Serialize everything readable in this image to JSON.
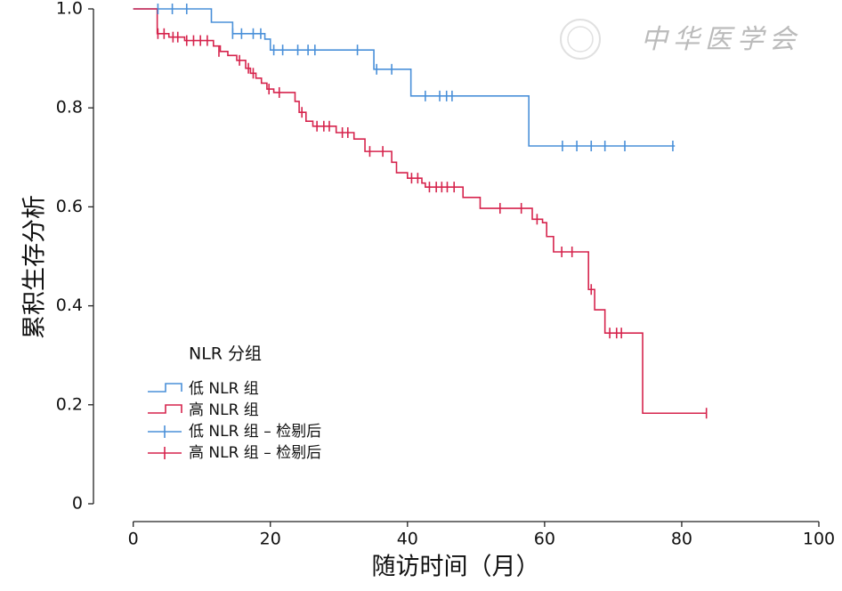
{
  "chart_data": {
    "type": "kaplan-meier",
    "xlabel": "随访时间（月）",
    "ylabel": "累积生存分析",
    "legend_title": "NLR 分组",
    "watermark": "中华医学会",
    "xlim": [
      -5.8,
      100
    ],
    "ylim": [
      -0.036,
      1.0
    ],
    "xticks": [
      0,
      20,
      40,
      60,
      80,
      100
    ],
    "yticks": [
      0,
      0.2,
      0.4,
      0.6,
      0.8,
      {
        "value": 1,
        "label": "1.0"
      }
    ],
    "legend": "left",
    "series": [
      {
        "name": "低 NLR 组",
        "color": "#4a90d9",
        "style": "step",
        "x": [
          0,
          11.4,
          14.5,
          19.2,
          20,
          35.1,
          40.5,
          57.7,
          79
        ],
        "values": [
          1,
          0.973,
          0.95,
          0.939,
          0.917,
          0.878,
          0.824,
          0.723,
          0.723
        ]
      },
      {
        "name": "高 NLR 组",
        "color": "#d6244d",
        "style": "step",
        "x": [
          0,
          3.5,
          5.2,
          7.5,
          11.7,
          12.7,
          13.8,
          15.1,
          16.4,
          17.1,
          17.9,
          18.7,
          19.5,
          20.5,
          23.6,
          24.2,
          25.2,
          26.2,
          29.6,
          32.2,
          33.8,
          37.7,
          38.4,
          40,
          42.1,
          42.6,
          48.1,
          50.6,
          58.2,
          59.7,
          60.3,
          61.3,
          66.4,
          67.3,
          68.8,
          74.3,
          83.6
        ],
        "values": [
          1,
          0.95,
          0.943,
          0.936,
          0.925,
          0.914,
          0.906,
          0.896,
          0.88,
          0.87,
          0.86,
          0.85,
          0.838,
          0.831,
          0.813,
          0.791,
          0.773,
          0.763,
          0.75,
          0.737,
          0.712,
          0.69,
          0.669,
          0.658,
          0.648,
          0.64,
          0.619,
          0.597,
          0.575,
          0.568,
          0.54,
          0.509,
          0.433,
          0.392,
          0.345,
          0.183,
          0.183
        ]
      },
      {
        "name": "低 NLR 组 – 检剔后",
        "color": "#4a90d9",
        "style": "censor",
        "x": [
          3.6,
          5.7,
          7.8,
          14.5,
          15.8,
          17.5,
          18.6,
          20.5,
          21.8,
          24,
          25.5,
          26.5,
          32.7,
          35.5,
          37.7,
          42.6,
          44.7,
          45.7,
          46.5,
          62.6,
          64.7,
          66.8,
          68.8,
          71.7,
          78.7
        ],
        "values": [
          1,
          1,
          1,
          0.95,
          0.95,
          0.95,
          0.95,
          0.917,
          0.917,
          0.917,
          0.917,
          0.917,
          0.917,
          0.878,
          0.878,
          0.824,
          0.824,
          0.824,
          0.824,
          0.723,
          0.723,
          0.723,
          0.723,
          0.723,
          0.723
        ]
      },
      {
        "name": "高 NLR 组 – 检剔后",
        "color": "#d6244d",
        "style": "censor",
        "x": [
          3.6,
          4.5,
          5.8,
          6.5,
          7.8,
          8.8,
          9.8,
          10.8,
          12.5,
          15.5,
          16.8,
          17.5,
          19.8,
          21.3,
          24.6,
          26.8,
          27.8,
          28.6,
          30.5,
          31.3,
          34.5,
          36.4,
          40.6,
          41.5,
          43.2,
          44.2,
          45,
          45.8,
          46.8,
          53.5,
          56.6,
          58.9,
          62.5,
          64,
          66.8,
          69.5,
          70.5,
          71.2,
          83.6
        ],
        "values": [
          0.95,
          0.95,
          0.943,
          0.943,
          0.936,
          0.936,
          0.936,
          0.936,
          0.914,
          0.896,
          0.88,
          0.87,
          0.838,
          0.831,
          0.791,
          0.763,
          0.763,
          0.763,
          0.75,
          0.75,
          0.712,
          0.712,
          0.658,
          0.658,
          0.64,
          0.64,
          0.64,
          0.64,
          0.64,
          0.597,
          0.597,
          0.575,
          0.509,
          0.509,
          0.433,
          0.345,
          0.345,
          0.345,
          0.183
        ]
      }
    ]
  }
}
